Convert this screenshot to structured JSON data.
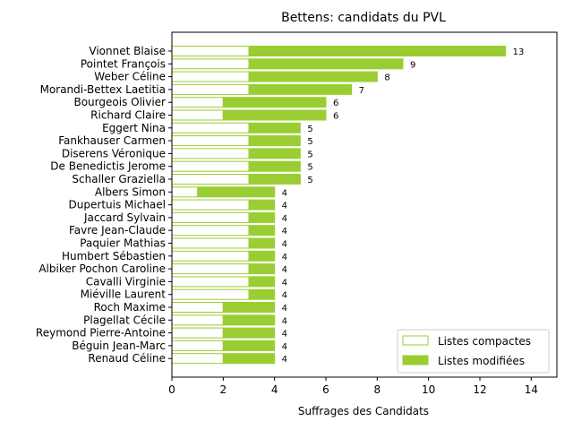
{
  "chart_data": {
    "type": "bar",
    "orientation": "horizontal",
    "stacked": true,
    "title": "Bettens: candidats du PVL",
    "xlabel": "Suffrages des Candidats",
    "ylabel": "",
    "xlim": [
      0,
      15
    ],
    "xticks": [
      0,
      2,
      4,
      6,
      8,
      10,
      12,
      14
    ],
    "grid": false,
    "legend_position": "lower-right",
    "colors": {
      "accent": "#9acd32",
      "compact_fill": "#ffffff",
      "axis": "#000000"
    },
    "categories": [
      "Vionnet Blaise",
      "Pointet François",
      "Weber Céline",
      "Morandi-Bettex Laetitia",
      "Bourgeois Olivier",
      "Richard Claire",
      "Eggert Nina",
      "Fankhauser Carmen",
      "Diserens Véronique",
      "De Benedictis Jerome",
      "Schaller Graziella",
      "Albers Simon",
      "Dupertuis Michael",
      "Jaccard Sylvain",
      "Favre Jean-Claude",
      "Paquier Mathias",
      "Humbert Sébastien",
      "Albiker Pochon Caroline",
      "Cavalli Virginie",
      "Miéville Laurent",
      "Roch Maxime",
      "Plagellat Cécile",
      "Reymond Pierre-Antoine",
      "Béguin Jean-Marc",
      "Renaud Céline"
    ],
    "series": [
      {
        "name": "Listes compactes",
        "values": [
          3,
          3,
          3,
          3,
          2,
          2,
          3,
          3,
          3,
          3,
          3,
          1,
          3,
          3,
          3,
          3,
          3,
          3,
          3,
          3,
          2,
          2,
          2,
          2,
          2
        ]
      },
      {
        "name": "Listes modifiées",
        "values": [
          10,
          6,
          5,
          4,
          4,
          4,
          2,
          2,
          2,
          2,
          2,
          3,
          1,
          1,
          1,
          1,
          1,
          1,
          1,
          1,
          2,
          2,
          2,
          2,
          2
        ]
      }
    ],
    "totals": [
      "13",
      "9",
      "8",
      "7",
      "6",
      "6",
      "5",
      "5",
      "5",
      "5",
      "5",
      "4",
      "4",
      "4",
      "4",
      "4",
      "4",
      "4",
      "4",
      "4",
      "4",
      "4",
      "4",
      "4",
      "4"
    ]
  }
}
